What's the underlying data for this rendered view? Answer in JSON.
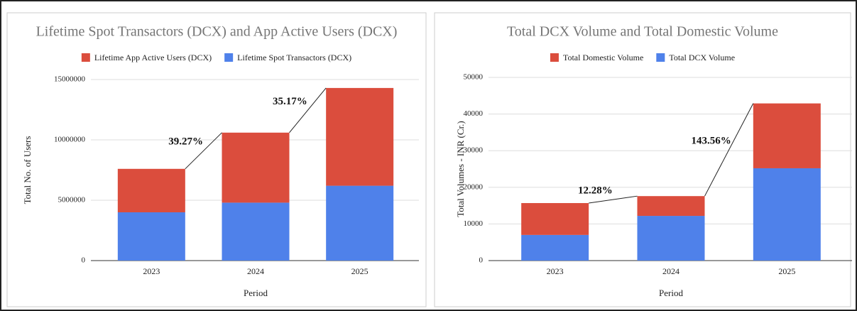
{
  "chart_data": [
    {
      "type": "bar",
      "stacked": true,
      "title": "Lifetime Spot Transactors (DCX) and App Active Users (DCX)",
      "x_label": "Period",
      "y_label": "Total No. of Users",
      "categories": [
        "2023",
        "2024",
        "2025"
      ],
      "series": [
        {
          "name": "Lifetime Spot Transactors (DCX)",
          "color": "#4f81ea",
          "values": [
            4000000,
            4800000,
            6200000
          ]
        },
        {
          "name": "Lifetime App Active Users (DCX)",
          "color": "#db4d3d",
          "values": [
            3600000,
            5800000,
            8100000
          ]
        }
      ],
      "ylim": [
        0,
        15000000
      ],
      "yticks": [
        0,
        5000000,
        10000000,
        15000000
      ],
      "grid": true,
      "annotations": [
        "39.27%",
        "35.17%"
      ]
    },
    {
      "type": "bar",
      "stacked": true,
      "title": "Total DCX Volume and Total Domestic Volume",
      "x_label": "Period",
      "y_label": "Total Volumes - INR (Cr.)",
      "categories": [
        "2023",
        "2024",
        "2025"
      ],
      "series": [
        {
          "name": "Total DCX Volume",
          "color": "#4f81ea",
          "values": [
            7000,
            12200,
            25200
          ]
        },
        {
          "name": "Total Domestic Volume",
          "color": "#db4d3d",
          "values": [
            8700,
            5400,
            17700
          ]
        }
      ],
      "ylim": [
        0,
        50000
      ],
      "yticks": [
        0,
        10000,
        20000,
        30000,
        40000,
        50000
      ],
      "grid": true,
      "annotations": [
        "12.28%",
        "143.56%"
      ]
    }
  ]
}
